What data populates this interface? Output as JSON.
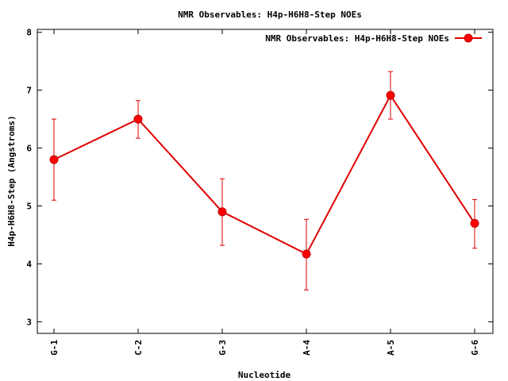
{
  "chart_data": {
    "type": "line",
    "title": "NMR Observables: H4p-H6H8-Step NOEs",
    "xlabel": "Nucleotide",
    "ylabel": "H4p-H6H8-Step (Angstroms)",
    "categories": [
      "G-1",
      "C-2",
      "G-3",
      "A-4",
      "A-5",
      "G-6"
    ],
    "ylim": [
      2.8,
      8.05
    ],
    "yticks": [
      3,
      4,
      5,
      6,
      7,
      8
    ],
    "grid": false,
    "legend_position": "top-right",
    "series": [
      {
        "name": "NMR Observables: H4p-H6H8-Step NOEs",
        "color": "#ff0000",
        "values": [
          5.8,
          6.5,
          4.9,
          4.17,
          6.91,
          4.7
        ],
        "err_low": [
          5.1,
          6.17,
          4.32,
          3.55,
          6.5,
          4.27
        ],
        "err_high": [
          6.5,
          6.82,
          5.47,
          4.77,
          7.32,
          5.11
        ]
      }
    ]
  }
}
